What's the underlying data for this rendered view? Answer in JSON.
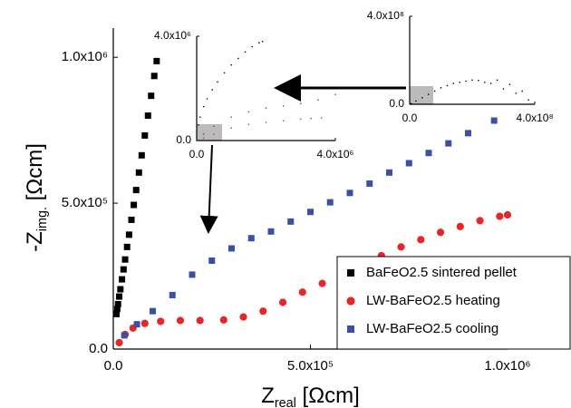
{
  "chart_data": [
    {
      "type": "scatter",
      "xlabel": [
        "Z",
        "real",
        " [Ωcm]"
      ],
      "ylabel": [
        "-Z",
        "img.",
        " [Ωcm]"
      ],
      "xlim": [
        0,
        1000000
      ],
      "ylim": [
        0,
        1100000
      ],
      "xticks": [
        {
          "value": 0,
          "label": "0.0"
        },
        {
          "value": 500000,
          "label": "5.0x10⁵"
        },
        {
          "value": 1000000,
          "label": "1.0x10⁶"
        }
      ],
      "yticks": [
        {
          "value": 0,
          "label": "0.0"
        },
        {
          "value": 500000,
          "label": "5.0x10⁵"
        },
        {
          "value": 1000000,
          "label": "1.0x10⁶"
        }
      ],
      "legend": "lower right",
      "series": [
        {
          "name": "BaFeO2.5 sintered pellet",
          "color": "#000000",
          "marker": "square",
          "x": [
            8000,
            10000,
            12000,
            15000,
            18000,
            22000,
            26000,
            30000,
            35000,
            40000,
            46000,
            52000,
            58000,
            65000,
            72000,
            80000,
            88000,
            96000,
            104000,
            110000
          ],
          "values": [
            120000,
            137000,
            154000,
            180000,
            205000,
            239000,
            273000,
            307000,
            350000,
            392000,
            443000,
            494000,
            545000,
            605000,
            664000,
            732000,
            800000,
            868000,
            936000,
            987000
          ]
        },
        {
          "name": "LW-BaFeO2.5 heating",
          "color": "#e8262a",
          "marker": "circle",
          "x": [
            15000,
            30000,
            50000,
            80000,
            120000,
            170000,
            220000,
            280000,
            330000,
            380000,
            430000,
            480000,
            530000,
            580000,
            630000,
            680000,
            730000,
            780000,
            830000,
            880000,
            930000,
            980000,
            1000000
          ],
          "values": [
            22000,
            50000,
            72000,
            88000,
            95000,
            98000,
            98000,
            100000,
            110000,
            130000,
            160000,
            195000,
            225000,
            255000,
            290000,
            320000,
            350000,
            375000,
            400000,
            420000,
            440000,
            455000,
            460000
          ]
        },
        {
          "name": "LW-BaFeO2.5 cooling",
          "color": "#3a51a3",
          "marker": "square",
          "x": [
            28000,
            60000,
            100000,
            150000,
            200000,
            250000,
            300000,
            350000,
            400000,
            450000,
            500000,
            550000,
            600000,
            650000,
            700000,
            750000,
            800000,
            850000,
            900000,
            966000
          ],
          "values": [
            47000,
            85000,
            130000,
            185000,
            255000,
            303000,
            345000,
            380000,
            403000,
            437000,
            470000,
            503000,
            535000,
            567000,
            605000,
            637000,
            672000,
            705000,
            740000,
            783000
          ]
        }
      ]
    },
    {
      "type": "scatter",
      "xlim": [
        0,
        4000000
      ],
      "ylim": [
        0,
        4000000
      ],
      "xticks": [
        {
          "value": 0,
          "label": "0.0"
        },
        {
          "value": 4000000,
          "label": "4.0x10⁶"
        }
      ],
      "yticks": [
        {
          "value": 0,
          "label": "0.0"
        },
        {
          "value": 4000000,
          "label": "4.0x10⁶"
        }
      ],
      "series": [
        {
          "color": "#000000",
          "marker": "circle",
          "x": [
            0,
            50000,
            100000,
            200000,
            300000,
            450000,
            600000,
            800000,
            1000000,
            1200000,
            1400000,
            1600000,
            1800000,
            1900000
          ],
          "values": [
            0,
            600000,
            900000,
            1300000,
            1600000,
            1950000,
            2250000,
            2600000,
            2900000,
            3150000,
            3400000,
            3600000,
            3750000,
            3800000
          ]
        },
        {
          "color": "#3a51a3",
          "marker": "circle",
          "x": [
            0,
            200000,
            500000,
            1000000,
            1500000,
            2000000,
            2500000,
            3000000,
            3500000,
            4000000
          ],
          "values": [
            0,
            250000,
            550000,
            900000,
            1100000,
            1250000,
            1330000,
            1420000,
            1560000,
            1770000
          ]
        },
        {
          "color": "#e8262a",
          "marker": "circle",
          "x": [
            0,
            200000,
            500000,
            1000000,
            1500000,
            2000000,
            2500000,
            3000000,
            3300000,
            3600000
          ],
          "values": [
            0,
            100000,
            250000,
            480000,
            620000,
            700000,
            760000,
            820000,
            850000,
            870000
          ]
        }
      ]
    },
    {
      "type": "scatter",
      "xlim": [
        0,
        400000000
      ],
      "ylim": [
        0,
        400000000
      ],
      "xticks": [
        {
          "value": 0,
          "label": "0.0"
        },
        {
          "value": 400000000,
          "label": "4.0x10⁸"
        }
      ],
      "yticks": [
        {
          "value": 0,
          "label": "0.0"
        },
        {
          "value": 400000000,
          "label": "4.0x10⁸"
        }
      ],
      "series": [
        {
          "color": "#000000",
          "marker": "circle",
          "x": [
            5000000,
            20000000,
            40000000,
            60000000,
            80000000,
            100000000,
            120000000,
            140000000,
            160000000,
            180000000,
            200000000,
            220000000,
            240000000,
            260000000,
            280000000,
            300000000,
            320000000,
            340000000,
            360000000,
            380000000
          ],
          "values": [
            3000000,
            15000000,
            30000000,
            45000000,
            60000000,
            75000000,
            85000000,
            95000000,
            100000000,
            105000000,
            110000000,
            108000000,
            100000000,
            95000000,
            110000000,
            70000000,
            90000000,
            50000000,
            60000000,
            20000000
          ]
        }
      ]
    }
  ]
}
